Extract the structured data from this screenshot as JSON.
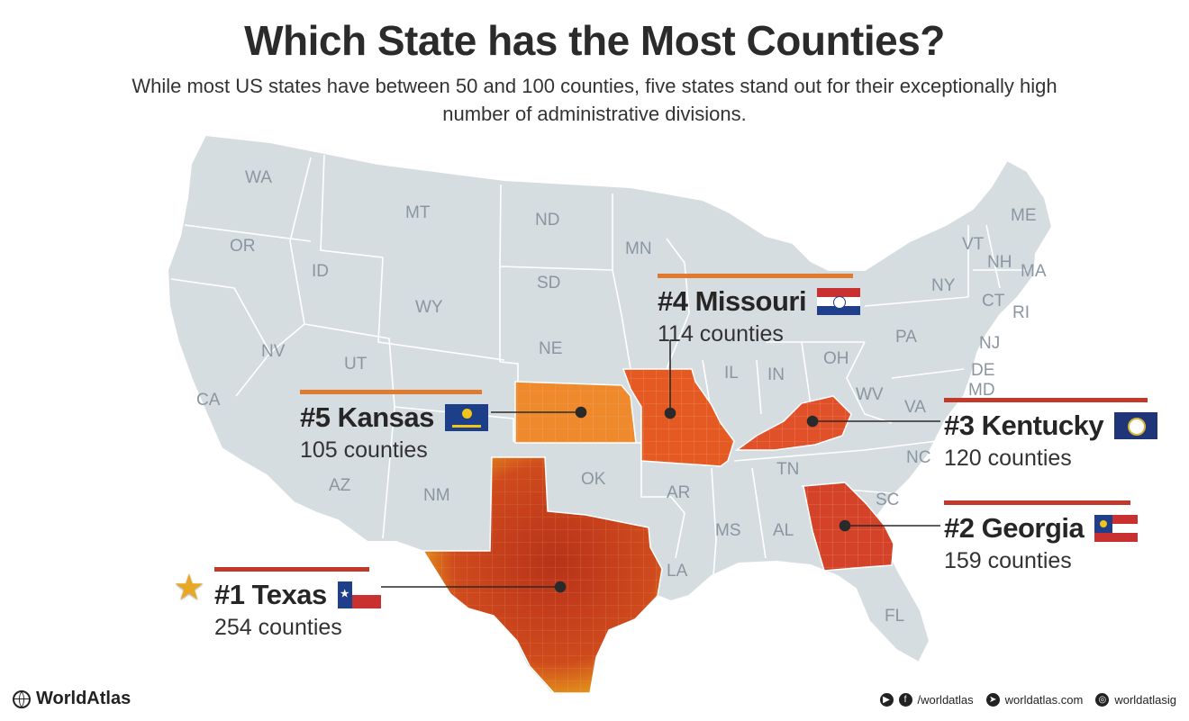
{
  "title": "Which State has the Most Counties?",
  "subtitle": "While most US states have between 50 and 100 counties, five states stand out for their exceptionally high number of administrative divisions.",
  "colors": {
    "land": "#d5dde1",
    "border": "#ffffff",
    "texas": "#c8401c",
    "missouri": "#e55a22",
    "kansas": "#ee8a2c",
    "kentucky": "#e0512a",
    "georgia": "#d4422a",
    "callout_bar_red": "#c0392b",
    "callout_bar_orange": "#e07a2e"
  },
  "state_labels": [
    "WA",
    "OR",
    "CA",
    "ID",
    "NV",
    "MT",
    "WY",
    "UT",
    "AZ",
    "NM",
    "ND",
    "SD",
    "NE",
    "OK",
    "MN",
    "AR",
    "LA",
    "MS",
    "AL",
    "IL",
    "IN",
    "OH",
    "TN",
    "WV",
    "VA",
    "NC",
    "SC",
    "FL",
    "PA",
    "NY",
    "VT",
    "NH",
    "ME",
    "MA",
    "CT",
    "RI",
    "NJ",
    "DE",
    "MD"
  ],
  "callouts": {
    "texas": {
      "name": "#1 Texas",
      "count": "254 counties"
    },
    "georgia": {
      "name": "#2 Georgia",
      "count": "159 counties"
    },
    "kentucky": {
      "name": "#3 Kentucky",
      "count": "120 counties"
    },
    "missouri": {
      "name": "#4 Missouri",
      "count": "114 counties"
    },
    "kansas": {
      "name": "#5 Kansas",
      "count": "105 counties"
    }
  },
  "icons": {
    "top_rank": "star-icon",
    "brand": "globe-icon"
  },
  "footer": {
    "brand": "WorldAtlas",
    "social_handle": "/worldatlas",
    "website": "worldatlas.com",
    "instagram": "worldatlasig"
  }
}
